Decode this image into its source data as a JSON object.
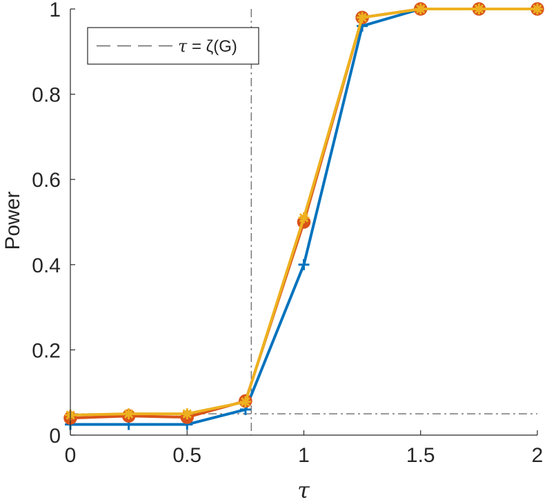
{
  "chart_data": {
    "type": "line",
    "xlabel": "τ",
    "ylabel": "Power",
    "xlim": [
      0,
      2
    ],
    "ylim": [
      0,
      1
    ],
    "xticks": [
      0,
      0.5,
      1,
      1.5,
      2
    ],
    "xtick_labels": [
      "0",
      "0.5",
      "1",
      "1.5",
      "2"
    ],
    "yticks": [
      0,
      0.2,
      0.4,
      0.6,
      0.8,
      1
    ],
    "ytick_labels": [
      "0",
      "0.2",
      "0.4",
      "0.6",
      "0.8",
      "1"
    ],
    "grid": false,
    "legend": {
      "placement": "top-left",
      "entries": [
        {
          "symbol": "τ",
          "text": " = ζ(G)"
        }
      ]
    },
    "reference_lines": [
      {
        "orientation": "vertical",
        "x": 0.775,
        "style": "dash-dot",
        "color": "#777777"
      },
      {
        "orientation": "horizontal",
        "y": 0.05,
        "style": "dash-dot",
        "color": "#777777"
      }
    ],
    "x": [
      0,
      0.25,
      0.5,
      0.75,
      1,
      1.25,
      1.5,
      1.75,
      2
    ],
    "series": [
      {
        "color": "#0072BD",
        "marker": "plus",
        "values": [
          0.025,
          0.025,
          0.025,
          0.06,
          0.4,
          0.96,
          1.0,
          1.0,
          1.0
        ]
      },
      {
        "color": "#D95319",
        "marker": "circle",
        "values": [
          0.04,
          0.045,
          0.042,
          0.08,
          0.5,
          0.98,
          1.0,
          1.0,
          1.0
        ]
      },
      {
        "color": "#EDB120",
        "marker": "star",
        "values": [
          0.047,
          0.05,
          0.05,
          0.078,
          0.51,
          0.98,
          1.0,
          1.0,
          1.0
        ]
      }
    ]
  }
}
